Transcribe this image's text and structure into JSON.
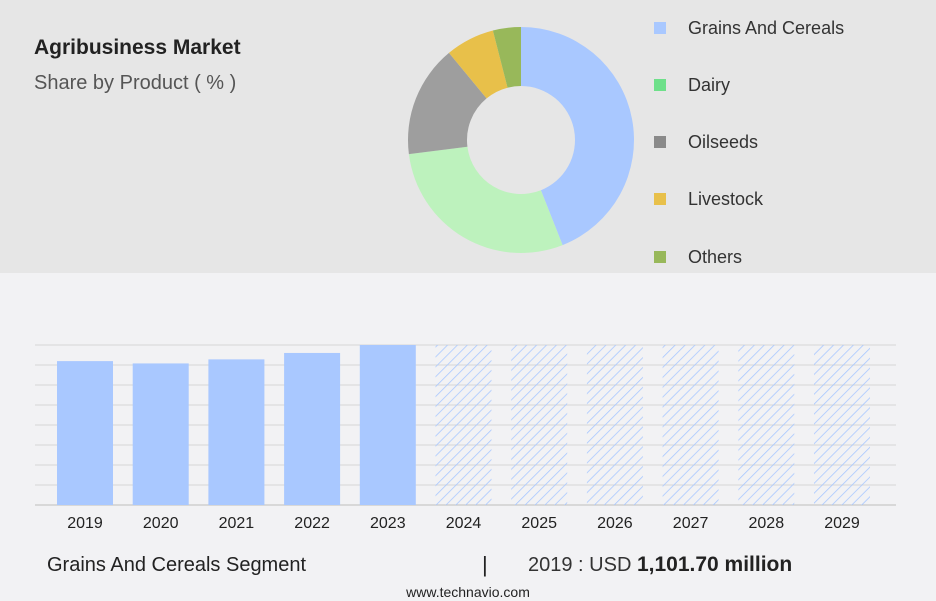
{
  "header": {
    "title": "Agribusiness Market",
    "subtitle": "Share by Product ( % )"
  },
  "chart_data": [
    {
      "type": "pie",
      "variant": "donut",
      "title": "Agribusiness Market",
      "subtitle": "Share by Product ( % )",
      "legend_position": "right",
      "series": [
        {
          "name": "Grains And Cereals",
          "value": 44,
          "color": "#a9c8ff"
        },
        {
          "name": "Dairy",
          "value": 29,
          "color": "#bdf2bd"
        },
        {
          "name": "Oilseeds",
          "value": 16,
          "color": "#9e9e9e"
        },
        {
          "name": "Livestock",
          "value": 7,
          "color": "#e8c04a"
        },
        {
          "name": "Others",
          "value": 4,
          "color": "#98b85a"
        }
      ]
    },
    {
      "type": "bar",
      "categories": [
        "2019",
        "2020",
        "2021",
        "2022",
        "2023",
        "2024",
        "2025",
        "2026",
        "2027",
        "2028",
        "2029"
      ],
      "values": [
        1101.7,
        1084,
        1115,
        1164,
        1225,
        null,
        null,
        null,
        null,
        null,
        null
      ],
      "forecast_from_index": 5,
      "ylim": [
        0,
        1225
      ],
      "grid": true,
      "bar_color": "#a9c8ff",
      "forecast_pattern_color": "#a9c8ff"
    }
  ],
  "legend_label_color": {
    "swatch_colors": {
      "Grains And Cereals": "#a9c8ff",
      "Dairy": "#6ee08a",
      "Oilseeds": "#8a8a8a",
      "Livestock": "#e8c04a",
      "Others": "#98b85a"
    }
  },
  "footer": {
    "segment_label": "Grains And Cereals Segment",
    "separator": "|",
    "value_prefix": "2019 : USD",
    "value_bold": "1,101.70 million",
    "website": "www.technavio.com"
  }
}
